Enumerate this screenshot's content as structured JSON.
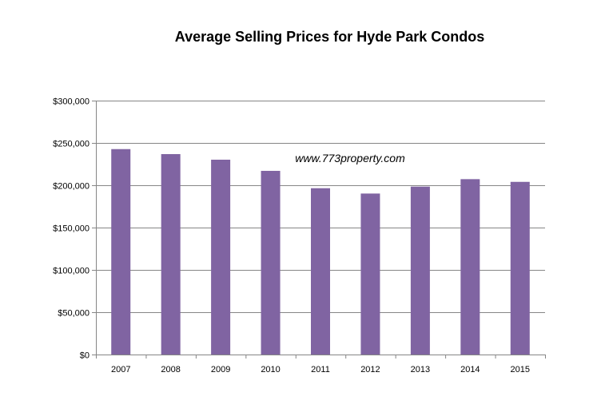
{
  "chart_data": {
    "type": "bar",
    "title": "Average Selling Prices for Hyde Park Condos",
    "xlabel": "",
    "ylabel": "",
    "categories": [
      "2007",
      "2008",
      "2009",
      "2010",
      "2011",
      "2012",
      "2013",
      "2014",
      "2015"
    ],
    "values": [
      242700,
      236800,
      230200,
      217000,
      196500,
      190200,
      198400,
      207200,
      204000
    ],
    "ylim": [
      0,
      300000
    ],
    "yticks": [
      0,
      50000,
      100000,
      150000,
      200000,
      250000,
      300000
    ],
    "ytick_labels": [
      "$0",
      "$50,000",
      "$100,000",
      "$150,000",
      "$200,000",
      "$250,000",
      "$300,000"
    ],
    "grid": true,
    "bar_color": "#8064A2",
    "annotation": "www.773property.com"
  }
}
